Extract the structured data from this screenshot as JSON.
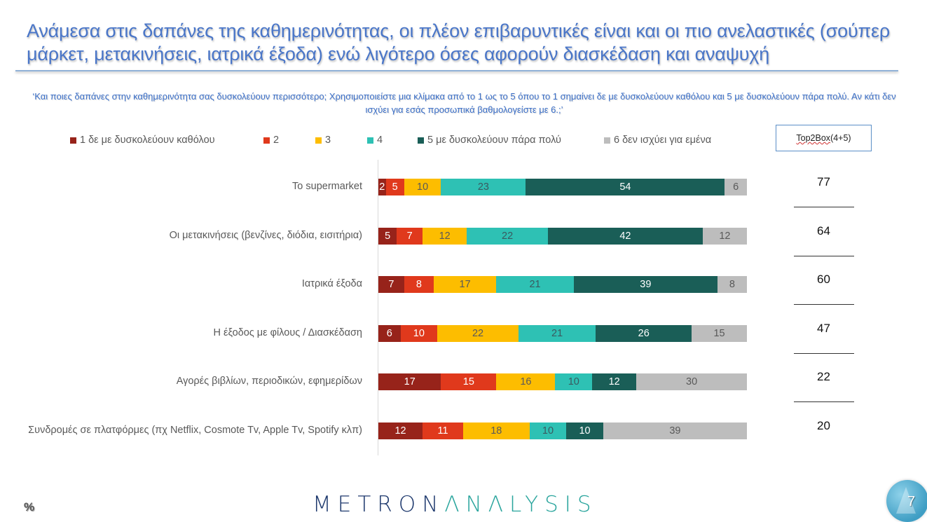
{
  "slide": {
    "title": "Ανάμεσα στις δαπάνες της καθημερινότητας, οι πλέον επιβαρυντικές είναι και οι πιο ανελαστικές (σούπερ μάρκετ, μετακινήσεις, ιατρικά έξοδα) ενώ λιγότερο όσες αφορούν διασκέδαση και αναψυχή",
    "subtitle": "‘Και ποιες δαπάνες στην καθημερινότητα σας δυσκολεύουν περισσότερο; Χρησιμοποιείστε μια κλίμακα από το 1 ως το 5 όπου το 1 σημαίνει δε με δυσκολεύουν καθόλου και 5 με δυσκολεύουν πάρα πολύ. Αν κάτι δεν ισχύει για εσάς προσωπικά βαθμολογείστε με 6.;’",
    "page_number": "7",
    "percent_icon": "%",
    "logo": {
      "part1": "METRON",
      "part2": "ΛNΛLYSIS"
    }
  },
  "chart_data": {
    "type": "bar",
    "orientation": "horizontal",
    "stacked": true,
    "title": "",
    "xlabel": "",
    "ylabel": "",
    "xlim": [
      0,
      100
    ],
    "grid": false,
    "legend_position": "top",
    "categories": [
      "Το supermarket",
      "Οι μετακινήσεις (βενζίνες, διόδια, εισιτήρια)",
      "Ιατρικά έξοδα",
      "Η έξοδος με φίλους / Διασκέδαση",
      "Αγορές βιβλίων, περιοδικών, εφημερίδων",
      "Συνδρομές σε πλατφόρμες (πχ Netflix, Cosmote Tv, Apple Tv, Spotify κλπ)"
    ],
    "series": [
      {
        "name": "1  δε με δυσκολεύουν καθόλου",
        "color": "#97231a",
        "label_color": "#ffffff",
        "values": [
          2,
          5,
          7,
          6,
          17,
          12
        ]
      },
      {
        "name": "2",
        "color": "#e0391c",
        "label_color": "#ffffff",
        "values": [
          5,
          7,
          8,
          10,
          15,
          11
        ]
      },
      {
        "name": "3",
        "color": "#fdbd00",
        "label_color": "#595959",
        "values": [
          10,
          12,
          17,
          22,
          16,
          18
        ]
      },
      {
        "name": "4",
        "color": "#2ec1b4",
        "label_color": "#3a5a60",
        "values": [
          23,
          22,
          21,
          21,
          10,
          10
        ]
      },
      {
        "name": "5 με δυσκολεύουν πάρα πολύ",
        "color": "#1a5e57",
        "label_color": "#ffffff",
        "values": [
          54,
          42,
          39,
          26,
          12,
          10
        ]
      },
      {
        "name": "6 δεν ισχύει για εμένα",
        "color": "#bdbdbd",
        "label_color": "#595959",
        "values": [
          6,
          12,
          8,
          15,
          30,
          39
        ]
      }
    ],
    "top2box": {
      "header_prefix": "Top2Box",
      "header_suffix": " (4+5)",
      "values": [
        77,
        64,
        60,
        47,
        22,
        20
      ]
    }
  }
}
